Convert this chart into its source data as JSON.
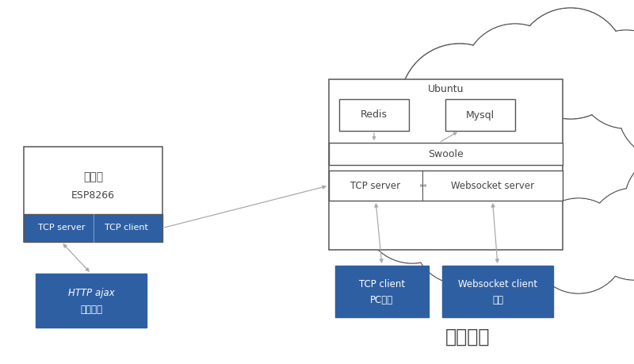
{
  "bg_color": "#ffffff",
  "box_outline": "#555555",
  "blue_fill": "#2E5FA3",
  "white_fill": "#ffffff",
  "arrow_color": "#aaaaaa",
  "cloud_color": "#555555",
  "font_color_white": "#ffffff",
  "font_color_dark": "#444444",
  "cloud_label": "云服务器",
  "esp_label1": "控制器",
  "esp_label2": "ESP8266",
  "tcp_server_left": "TCP server",
  "tcp_client_left": "TCP client",
  "http_label1": "HTTP ajax",
  "http_label2": "内置网页",
  "ubuntu_label": "Ubuntu",
  "redis_label": "Redis",
  "mysql_label": "Mysql",
  "swoole_label": "Swoole",
  "tcp_server_right": "TCP server",
  "ws_server": "Websocket server",
  "tcp_client_right1": "TCP client",
  "tcp_client_right2": "PC软件",
  "ws_client1": "Websocket client",
  "ws_client2": "网页",
  "cloud_circles": [
    [
      580,
      130,
      75
    ],
    [
      650,
      95,
      65
    ],
    [
      720,
      80,
      70
    ],
    [
      790,
      100,
      62
    ],
    [
      840,
      140,
      60
    ],
    [
      870,
      195,
      58
    ],
    [
      850,
      255,
      62
    ],
    [
      800,
      295,
      58
    ],
    [
      730,
      310,
      60
    ],
    [
      655,
      310,
      60
    ],
    [
      580,
      300,
      58
    ],
    [
      520,
      270,
      62
    ],
    [
      505,
      210,
      65
    ],
    [
      530,
      160,
      62
    ]
  ]
}
